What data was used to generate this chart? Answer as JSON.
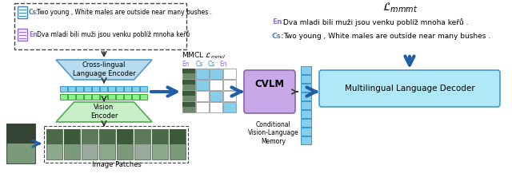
{
  "bg_color": "#ffffff",
  "title_mmmt": "$\\mathcal{L}_{mmmt}$",
  "en_text_right": "Dva mladi bili muži jsou venku poblíž mnoha keřů .",
  "cs_text_right": "Two young , White males are outside near many bushes .",
  "cs_text_left": "Two young , White males are outside near many bushes .",
  "en_text_left": "Dva mladi bili muži jsou venku poblíž mnoha keřů",
  "mmcl_label": "MMCL $\\mathcal{L}_{mmcl}$",
  "cle_label": "Cross-lingual\nLanguage Encoder",
  "ve_label": "Vision\nEncoder",
  "cvlm_label": "CVLM",
  "cvlm_sublabel": "Conditional\nVision-Language\nMemory",
  "mld_label": "Multilingual Language Decoder",
  "ip_label": "Image Patches",
  "color_en": "#9370DB",
  "color_cs": "#4682B4",
  "color_blue_arrow": "#1E5FA8",
  "color_encoder_fill": "#B8DCF0",
  "color_vision_fill": "#C8EEC8",
  "color_cvlm_fill": "#C8A8E8",
  "color_mld_fill": "#B0E8F8",
  "color_grid_blue": "#87CEEB",
  "color_token_blue": "#87CEEB",
  "color_token_green": "#90EE90",
  "color_encoder_edge": "#5599CC",
  "color_vision_edge": "#55AA55"
}
